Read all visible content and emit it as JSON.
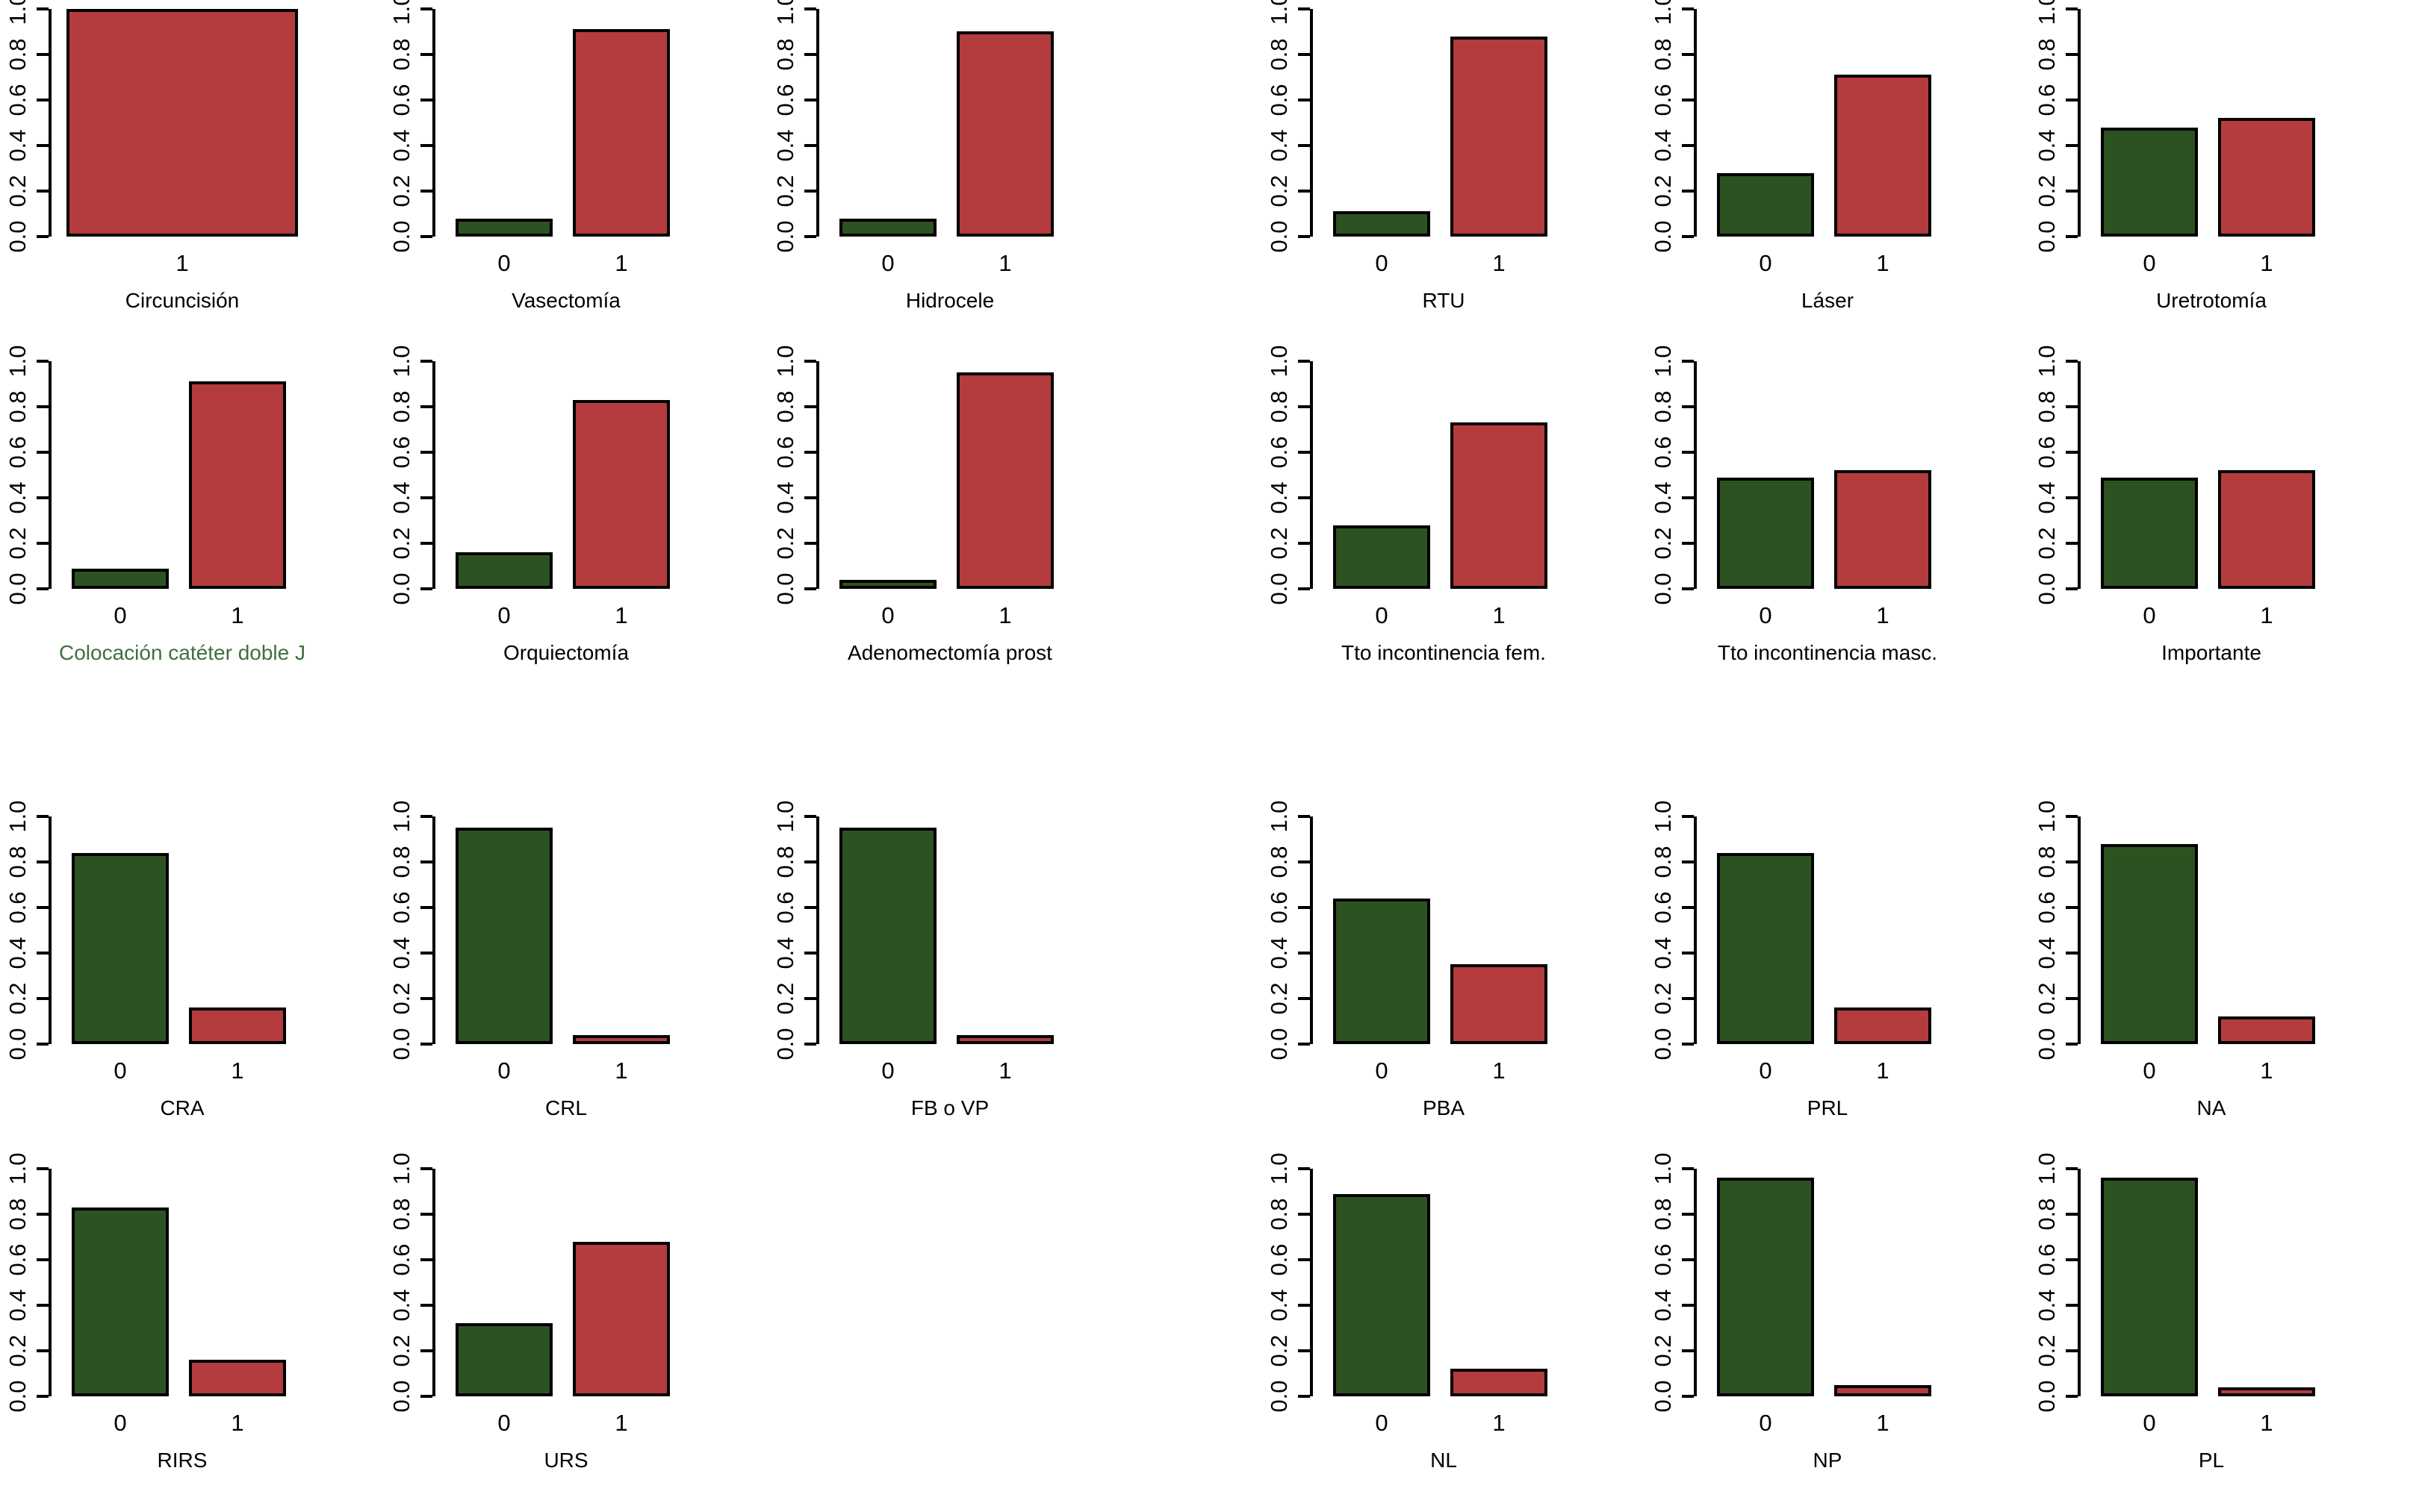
{
  "figure": {
    "background": "#ffffff",
    "palette": {
      "green": "#2d5221",
      "red": "#b43b3e",
      "bar_border": "#000000",
      "axis_color": "#000000",
      "text_color": "#000000",
      "highlight_title_color": "#3f6f3f"
    },
    "y_axis": {
      "min": 0.0,
      "max": 1.0,
      "tick_labels": [
        "0.0",
        "0.2",
        "0.4",
        "0.6",
        "0.8",
        "1.0"
      ]
    }
  },
  "chart_data": [
    {
      "type": "bar",
      "title": "Circuncisión",
      "row": 1,
      "col": 1,
      "categories": [
        "1"
      ],
      "values": [
        1.0
      ],
      "colors": [
        "red"
      ],
      "ylim": [
        0,
        1
      ],
      "highlight_title": false
    },
    {
      "type": "bar",
      "title": "Vasectomía",
      "row": 1,
      "col": 2,
      "categories": [
        "0",
        "1"
      ],
      "values": [
        0.08,
        0.91
      ],
      "colors": [
        "green",
        "red"
      ],
      "ylim": [
        0,
        1
      ],
      "highlight_title": false
    },
    {
      "type": "bar",
      "title": "Hidrocele",
      "row": 1,
      "col": 3,
      "categories": [
        "0",
        "1"
      ],
      "values": [
        0.08,
        0.9
      ],
      "colors": [
        "green",
        "red"
      ],
      "ylim": [
        0,
        1
      ],
      "highlight_title": false
    },
    {
      "type": "bar",
      "title": "RTU",
      "row": 1,
      "col": 4,
      "categories": [
        "0",
        "1"
      ],
      "values": [
        0.11,
        0.88
      ],
      "colors": [
        "green",
        "red"
      ],
      "ylim": [
        0,
        1
      ],
      "highlight_title": false
    },
    {
      "type": "bar",
      "title": "Láser",
      "row": 1,
      "col": 5,
      "categories": [
        "0",
        "1"
      ],
      "values": [
        0.28,
        0.71
      ],
      "colors": [
        "green",
        "red"
      ],
      "ylim": [
        0,
        1
      ],
      "highlight_title": false
    },
    {
      "type": "bar",
      "title": "Uretrotomía",
      "row": 1,
      "col": 6,
      "categories": [
        "0",
        "1"
      ],
      "values": [
        0.48,
        0.52
      ],
      "colors": [
        "green",
        "red"
      ],
      "ylim": [
        0,
        1
      ],
      "highlight_title": false
    },
    {
      "type": "bar",
      "title": "Colocación catéter doble J",
      "row": 2,
      "col": 1,
      "categories": [
        "0",
        "1"
      ],
      "values": [
        0.09,
        0.91
      ],
      "colors": [
        "green",
        "red"
      ],
      "ylim": [
        0,
        1
      ],
      "highlight_title": true
    },
    {
      "type": "bar",
      "title": "Orquiectomía",
      "row": 2,
      "col": 2,
      "categories": [
        "0",
        "1"
      ],
      "values": [
        0.16,
        0.83
      ],
      "colors": [
        "green",
        "red"
      ],
      "ylim": [
        0,
        1
      ],
      "highlight_title": false
    },
    {
      "type": "bar",
      "title": "Adenomectomía prost",
      "row": 2,
      "col": 3,
      "categories": [
        "0",
        "1"
      ],
      "values": [
        0.04,
        0.95
      ],
      "colors": [
        "green",
        "red"
      ],
      "ylim": [
        0,
        1
      ],
      "highlight_title": false
    },
    {
      "type": "bar",
      "title": "Tto incontinencia fem.",
      "row": 2,
      "col": 4,
      "categories": [
        "0",
        "1"
      ],
      "values": [
        0.28,
        0.73
      ],
      "colors": [
        "green",
        "red"
      ],
      "ylim": [
        0,
        1
      ],
      "highlight_title": false
    },
    {
      "type": "bar",
      "title": "Tto incontinencia masc.",
      "row": 2,
      "col": 5,
      "categories": [
        "0",
        "1"
      ],
      "values": [
        0.49,
        0.52
      ],
      "colors": [
        "green",
        "red"
      ],
      "ylim": [
        0,
        1
      ],
      "highlight_title": false
    },
    {
      "type": "bar",
      "title": "Importante",
      "row": 2,
      "col": 6,
      "categories": [
        "0",
        "1"
      ],
      "values": [
        0.49,
        0.52
      ],
      "colors": [
        "green",
        "red"
      ],
      "ylim": [
        0,
        1
      ],
      "highlight_title": false
    },
    {
      "type": "bar",
      "title": "CRA",
      "row": 3,
      "col": 1,
      "categories": [
        "0",
        "1"
      ],
      "values": [
        0.84,
        0.16
      ],
      "colors": [
        "green",
        "red"
      ],
      "ylim": [
        0,
        1
      ],
      "highlight_title": false
    },
    {
      "type": "bar",
      "title": "CRL",
      "row": 3,
      "col": 2,
      "categories": [
        "0",
        "1"
      ],
      "values": [
        0.95,
        0.04
      ],
      "colors": [
        "green",
        "red"
      ],
      "ylim": [
        0,
        1
      ],
      "highlight_title": false
    },
    {
      "type": "bar",
      "title": "FB o VP",
      "row": 3,
      "col": 3,
      "categories": [
        "0",
        "1"
      ],
      "values": [
        0.95,
        0.04
      ],
      "colors": [
        "green",
        "red"
      ],
      "ylim": [
        0,
        1
      ],
      "highlight_title": false
    },
    {
      "type": "bar",
      "title": "PBA",
      "row": 3,
      "col": 4,
      "categories": [
        "0",
        "1"
      ],
      "values": [
        0.64,
        0.35
      ],
      "colors": [
        "green",
        "red"
      ],
      "ylim": [
        0,
        1
      ],
      "highlight_title": false
    },
    {
      "type": "bar",
      "title": "PRL",
      "row": 3,
      "col": 5,
      "categories": [
        "0",
        "1"
      ],
      "values": [
        0.84,
        0.16
      ],
      "colors": [
        "green",
        "red"
      ],
      "ylim": [
        0,
        1
      ],
      "highlight_title": false
    },
    {
      "type": "bar",
      "title": "NA",
      "row": 3,
      "col": 6,
      "categories": [
        "0",
        "1"
      ],
      "values": [
        0.88,
        0.12
      ],
      "colors": [
        "green",
        "red"
      ],
      "ylim": [
        0,
        1
      ],
      "highlight_title": false
    },
    {
      "type": "bar",
      "title": "RIRS",
      "row": 4,
      "col": 1,
      "categories": [
        "0",
        "1"
      ],
      "values": [
        0.83,
        0.16
      ],
      "colors": [
        "green",
        "red"
      ],
      "ylim": [
        0,
        1
      ],
      "highlight_title": false
    },
    {
      "type": "bar",
      "title": "URS",
      "row": 4,
      "col": 2,
      "categories": [
        "0",
        "1"
      ],
      "values": [
        0.32,
        0.68
      ],
      "colors": [
        "green",
        "red"
      ],
      "ylim": [
        0,
        1
      ],
      "highlight_title": false
    },
    {
      "type": "bar",
      "title": "NL",
      "row": 4,
      "col": 4,
      "categories": [
        "0",
        "1"
      ],
      "values": [
        0.89,
        0.12
      ],
      "colors": [
        "green",
        "red"
      ],
      "ylim": [
        0,
        1
      ],
      "highlight_title": false
    },
    {
      "type": "bar",
      "title": "NP",
      "row": 4,
      "col": 5,
      "categories": [
        "0",
        "1"
      ],
      "values": [
        0.96,
        0.05
      ],
      "colors": [
        "green",
        "red"
      ],
      "ylim": [
        0,
        1
      ],
      "highlight_title": false
    },
    {
      "type": "bar",
      "title": "PL",
      "row": 4,
      "col": 6,
      "categories": [
        "0",
        "1"
      ],
      "values": [
        0.96,
        0.04
      ],
      "colors": [
        "green",
        "red"
      ],
      "ylim": [
        0,
        1
      ],
      "highlight_title": false
    }
  ]
}
